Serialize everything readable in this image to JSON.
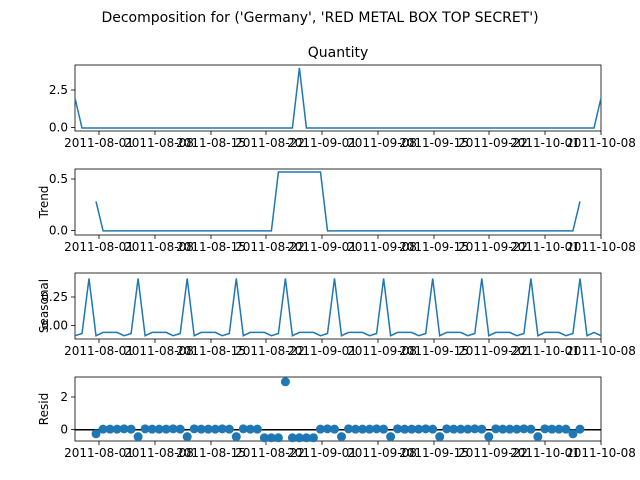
{
  "suptitle": "Decomposition for ('Germany', 'RED METAL BOX TOP SECRET')",
  "colors": {
    "series": "#1f77b4",
    "axis": "#000000",
    "zero_line": "#000000"
  },
  "x_tick_labels": [
    "2011-08-01",
    "2011-08-08",
    "2011-08-15",
    "2011-08-22",
    "2011-09-01",
    "2011-09-08",
    "2011-09-15",
    "2011-09-22",
    "2011-10-01",
    "2011-10-08"
  ],
  "chart_data": [
    {
      "type": "line",
      "title": "Quantity",
      "ylabel": "",
      "ylim": [
        -0.2,
        4.2
      ],
      "yticks": [
        "0.0",
        "2.5"
      ],
      "xlim": [
        0,
        75
      ],
      "x": [
        0,
        1,
        2,
        3,
        4,
        5,
        6,
        7,
        8,
        9,
        10,
        11,
        12,
        13,
        14,
        15,
        16,
        17,
        18,
        19,
        20,
        21,
        22,
        23,
        24,
        25,
        26,
        27,
        28,
        29,
        30,
        31,
        32,
        33,
        34,
        35,
        36,
        37,
        38,
        39,
        40,
        41,
        42,
        43,
        44,
        45,
        46,
        47,
        48,
        49,
        50,
        51,
        52,
        53,
        54,
        55,
        56,
        57,
        58,
        59,
        60,
        61,
        62,
        63,
        64,
        65,
        66,
        67,
        68,
        69,
        70,
        71,
        72,
        73,
        74,
        75
      ],
      "values": [
        2,
        0,
        0,
        0,
        0,
        0,
        0,
        0,
        0,
        0,
        0,
        0,
        0,
        0,
        0,
        0,
        0,
        0,
        0,
        0,
        0,
        0,
        0,
        0,
        0,
        0,
        0,
        0,
        0,
        0,
        0,
        0,
        4,
        0,
        0,
        0,
        0,
        0,
        0,
        0,
        0,
        0,
        0,
        0,
        0,
        0,
        0,
        0,
        0,
        0,
        0,
        0,
        0,
        0,
        0,
        0,
        0,
        0,
        0,
        0,
        0,
        0,
        0,
        0,
        0,
        0,
        0,
        0,
        0,
        0,
        0,
        0,
        0,
        0,
        0,
        2
      ]
    },
    {
      "type": "line",
      "title": "",
      "ylabel": "Trend",
      "ylim": [
        -0.04,
        0.6
      ],
      "yticks": [
        "0.0",
        "0.5"
      ],
      "xlim": [
        0,
        75
      ],
      "x": [
        3,
        4,
        5,
        6,
        7,
        8,
        9,
        10,
        11,
        12,
        13,
        14,
        15,
        16,
        17,
        18,
        19,
        20,
        21,
        22,
        23,
        24,
        25,
        26,
        27,
        28,
        29,
        30,
        31,
        32,
        33,
        34,
        35,
        36,
        37,
        38,
        39,
        40,
        41,
        42,
        43,
        44,
        45,
        46,
        47,
        48,
        49,
        50,
        51,
        52,
        53,
        54,
        55,
        56,
        57,
        58,
        59,
        60,
        61,
        62,
        63,
        64,
        65,
        66,
        67,
        68,
        69,
        70,
        71,
        72
      ],
      "values": [
        0.286,
        0,
        0,
        0,
        0,
        0,
        0,
        0,
        0,
        0,
        0,
        0,
        0,
        0,
        0,
        0,
        0,
        0,
        0,
        0,
        0,
        0,
        0,
        0,
        0,
        0,
        0.571,
        0.571,
        0.571,
        0.571,
        0.571,
        0.571,
        0.571,
        0,
        0,
        0,
        0,
        0,
        0,
        0,
        0,
        0,
        0,
        0,
        0,
        0,
        0,
        0,
        0,
        0,
        0,
        0,
        0,
        0,
        0,
        0,
        0,
        0,
        0,
        0,
        0,
        0,
        0,
        0,
        0,
        0,
        0,
        0,
        0,
        0.286
      ]
    },
    {
      "type": "line",
      "title": "",
      "ylabel": "Seasonal",
      "ylim": [
        -0.12,
        0.48
      ],
      "yticks": [
        "0.00",
        "0.25"
      ],
      "xlim": [
        0,
        75
      ],
      "x": [
        0,
        1,
        2,
        3,
        4,
        5,
        6,
        7,
        8,
        9,
        10,
        11,
        12,
        13,
        14,
        15,
        16,
        17,
        18,
        19,
        20,
        21,
        22,
        23,
        24,
        25,
        26,
        27,
        28,
        29,
        30,
        31,
        32,
        33,
        34,
        35,
        36,
        37,
        38,
        39,
        40,
        41,
        42,
        43,
        44,
        45,
        46,
        47,
        48,
        49,
        50,
        51,
        52,
        53,
        54,
        55,
        56,
        57,
        58,
        59,
        60,
        61,
        62,
        63,
        64,
        65,
        66,
        67,
        68,
        69,
        70,
        71,
        72,
        73,
        74,
        75
      ],
      "values": [
        -0.09,
        -0.07,
        0.43,
        -0.09,
        -0.06,
        -0.06,
        -0.06,
        -0.09,
        -0.07,
        0.43,
        -0.09,
        -0.06,
        -0.06,
        -0.06,
        -0.09,
        -0.07,
        0.43,
        -0.09,
        -0.06,
        -0.06,
        -0.06,
        -0.09,
        -0.07,
        0.43,
        -0.09,
        -0.06,
        -0.06,
        -0.06,
        -0.09,
        -0.07,
        0.43,
        -0.09,
        -0.06,
        -0.06,
        -0.06,
        -0.09,
        -0.07,
        0.43,
        -0.09,
        -0.06,
        -0.06,
        -0.06,
        -0.09,
        -0.07,
        0.43,
        -0.09,
        -0.06,
        -0.06,
        -0.06,
        -0.09,
        -0.07,
        0.43,
        -0.09,
        -0.06,
        -0.06,
        -0.06,
        -0.09,
        -0.07,
        0.43,
        -0.09,
        -0.06,
        -0.06,
        -0.06,
        -0.09,
        -0.07,
        0.43,
        -0.09,
        -0.06,
        -0.06,
        -0.06,
        -0.09,
        -0.07,
        0.43,
        -0.09,
        -0.06,
        -0.09
      ]
    },
    {
      "type": "scatter",
      "title": "",
      "ylabel": "Resid",
      "ylim": [
        -0.7,
        3.3
      ],
      "yticks": [
        "0",
        "2"
      ],
      "xlim": [
        0,
        75
      ],
      "x": [
        3,
        4,
        5,
        6,
        7,
        8,
        9,
        10,
        11,
        12,
        13,
        14,
        15,
        16,
        17,
        18,
        19,
        20,
        21,
        22,
        23,
        24,
        25,
        26,
        27,
        28,
        29,
        30,
        31,
        32,
        33,
        34,
        35,
        36,
        37,
        38,
        39,
        40,
        41,
        42,
        43,
        44,
        45,
        46,
        47,
        48,
        49,
        50,
        51,
        52,
        53,
        54,
        55,
        56,
        57,
        58,
        59,
        60,
        61,
        62,
        63,
        64,
        65,
        66,
        67,
        68,
        69,
        70,
        71,
        72
      ],
      "values": [
        -0.25,
        0.04,
        0.04,
        0.04,
        0.06,
        0.04,
        -0.43,
        0.06,
        0.04,
        0.04,
        0.04,
        0.06,
        0.04,
        -0.43,
        0.06,
        0.04,
        0.04,
        0.04,
        0.06,
        0.04,
        -0.43,
        0.06,
        0.04,
        0.04,
        -0.5,
        -0.5,
        -0.5,
        3.0,
        -0.5,
        -0.5,
        -0.5,
        -0.5,
        0.04,
        0.06,
        0.04,
        -0.43,
        0.06,
        0.04,
        0.04,
        0.04,
        0.06,
        0.04,
        -0.43,
        0.06,
        0.04,
        0.04,
        0.04,
        0.06,
        0.04,
        -0.43,
        0.06,
        0.04,
        0.04,
        0.04,
        0.06,
        0.04,
        -0.43,
        0.06,
        0.04,
        0.04,
        0.04,
        0.06,
        0.04,
        -0.43,
        0.06,
        0.04,
        0.04,
        0.04,
        -0.25,
        0.04
      ]
    }
  ]
}
